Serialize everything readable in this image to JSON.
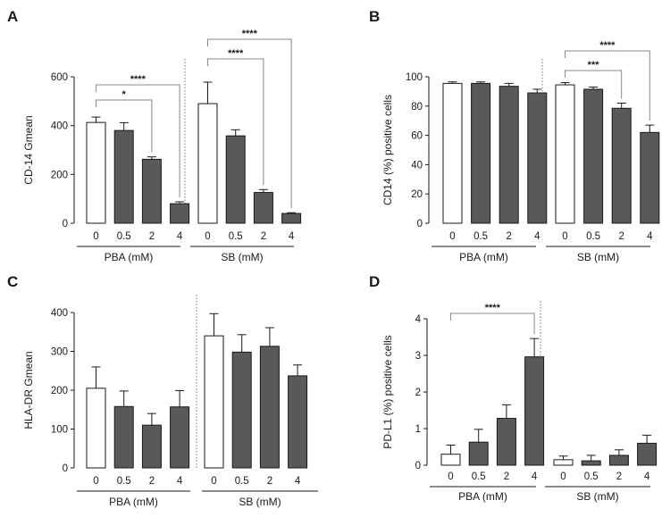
{
  "colors": {
    "control_fill": "#ffffff",
    "treated_fill": "#595959",
    "stroke": "#1a1a1a",
    "bracket": "#888888"
  },
  "chart_data": [
    {
      "panel": "A",
      "type": "bar",
      "ylabel": "CD-14 Gmean",
      "ylim": [
        0,
        600
      ],
      "yticks": [
        0,
        200,
        400,
        600
      ],
      "grid": false,
      "categories": [
        "0",
        "0.5",
        "2",
        "4",
        "0",
        "0.5",
        "2",
        "4"
      ],
      "groups": [
        {
          "label": "PBA (mM)",
          "values": [
            413,
            380,
            262,
            80
          ],
          "errors": [
            22,
            32,
            10,
            8
          ]
        },
        {
          "label": "SB (mM)",
          "values": [
            490,
            358,
            126,
            40
          ],
          "errors": [
            88,
            25,
            12,
            3
          ]
        }
      ],
      "significance": [
        {
          "group": 0,
          "from": 0,
          "to": 2,
          "label": "*"
        },
        {
          "group": 0,
          "from": 0,
          "to": 3,
          "label": "****"
        },
        {
          "group": 1,
          "from": 0,
          "to": 2,
          "label": "****"
        },
        {
          "group": 1,
          "from": 0,
          "to": 3,
          "label": "****"
        }
      ]
    },
    {
      "panel": "B",
      "type": "bar",
      "ylabel": "CD14 (%) positive cells",
      "ylim": [
        0,
        100
      ],
      "yticks": [
        0,
        20,
        40,
        60,
        80,
        100
      ],
      "grid": false,
      "categories": [
        "0",
        "0.5",
        "2",
        "4",
        "0",
        "0.5",
        "2",
        "4"
      ],
      "groups": [
        {
          "label": "PBA (mM)",
          "values": [
            95.5,
            95.5,
            93.5,
            89
          ],
          "errors": [
            1,
            1,
            2,
            2.5
          ]
        },
        {
          "label": "SB (mM)",
          "values": [
            94.5,
            91.5,
            78.5,
            62
          ],
          "errors": [
            1.5,
            1.5,
            3.5,
            5
          ]
        }
      ],
      "significance": [
        {
          "group": 1,
          "from": 0,
          "to": 2,
          "label": "***"
        },
        {
          "group": 1,
          "from": 0,
          "to": 3,
          "label": "****"
        }
      ]
    },
    {
      "panel": "C",
      "type": "bar",
      "ylabel": "HLA-DR Gmean",
      "ylim": [
        0,
        400
      ],
      "yticks": [
        0,
        100,
        200,
        300,
        400
      ],
      "grid": false,
      "categories": [
        "0",
        "0.5",
        "2",
        "4",
        "0",
        "0.5",
        "2",
        "4"
      ],
      "groups": [
        {
          "label": "PBA (mM)",
          "values": [
            205,
            158,
            110,
            157
          ],
          "errors": [
            55,
            40,
            30,
            42
          ]
        },
        {
          "label": "SB (mM)",
          "values": [
            340,
            298,
            313,
            237
          ],
          "errors": [
            57,
            45,
            48,
            28
          ]
        }
      ],
      "significance": []
    },
    {
      "panel": "D",
      "type": "bar",
      "ylabel": "PD-L1 (%) positive cells",
      "ylim": [
        0,
        4
      ],
      "yticks": [
        0,
        1,
        2,
        3,
        4
      ],
      "grid": false,
      "categories": [
        "0",
        "0.5",
        "2",
        "4",
        "0",
        "0.5",
        "2",
        "4"
      ],
      "groups": [
        {
          "label": "PBA (mM)",
          "values": [
            0.3,
            0.63,
            1.28,
            2.96
          ],
          "errors": [
            0.25,
            0.35,
            0.37,
            0.5
          ]
        },
        {
          "label": "SB (mM)",
          "values": [
            0.15,
            0.12,
            0.27,
            0.6
          ],
          "errors": [
            0.1,
            0.15,
            0.15,
            0.22
          ]
        }
      ],
      "significance": [
        {
          "group": 0,
          "from": 0,
          "to": 3,
          "label": "****"
        }
      ]
    }
  ]
}
